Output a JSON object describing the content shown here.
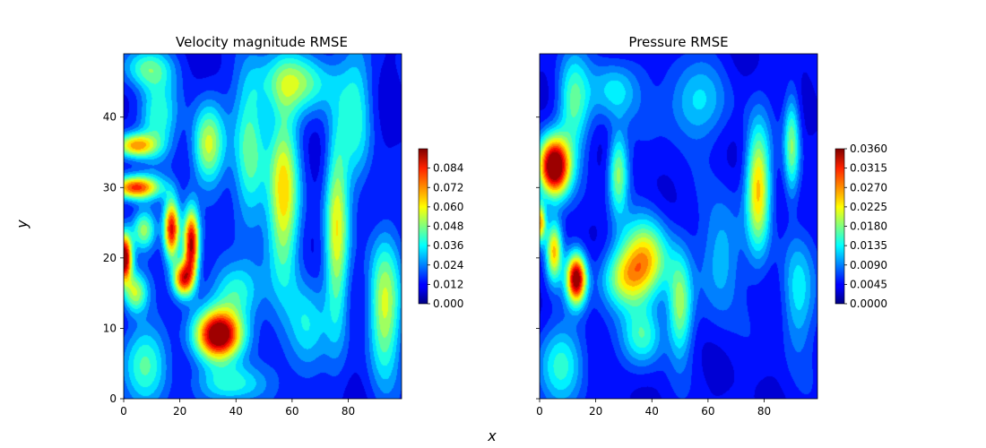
{
  "figure": {
    "xlabel": "x",
    "ylabel": "y"
  },
  "chart_data": [
    {
      "type": "heatmap",
      "title": "Velocity magnitude RMSE",
      "xlabel": "x",
      "ylabel": "y",
      "xlim": [
        0,
        99
      ],
      "ylim": [
        0,
        49
      ],
      "x_ticks": [
        0,
        20,
        40,
        60,
        80
      ],
      "x_tick_labels": [
        "0",
        "20",
        "40",
        "60",
        "80"
      ],
      "y_ticks": [
        0,
        10,
        20,
        30,
        40
      ],
      "y_tick_labels": [
        "0",
        "10",
        "20",
        "30",
        "40"
      ],
      "colormap": "jet",
      "colorbar": {
        "min": 0.0,
        "max": 0.096,
        "ticks": [
          0.0,
          0.012,
          0.024,
          0.036,
          0.048,
          0.06,
          0.072,
          0.084
        ],
        "tick_labels": [
          "0.000",
          "0.012",
          "0.024",
          "0.036",
          "0.048",
          "0.060",
          "0.072",
          "0.084"
        ]
      },
      "hotspots": [
        {
          "x": 34,
          "y": 9,
          "value": 0.09,
          "sx": 6,
          "sy": 2.5
        },
        {
          "x": 0,
          "y": 20,
          "value": 0.09,
          "sx": 2,
          "sy": 2.5
        },
        {
          "x": 24,
          "y": 22,
          "value": 0.082,
          "sx": 2,
          "sy": 3.5
        },
        {
          "x": 17,
          "y": 24,
          "value": 0.076,
          "sx": 2,
          "sy": 3
        },
        {
          "x": 21,
          "y": 17,
          "value": 0.068,
          "sx": 2.5,
          "sy": 1.8
        },
        {
          "x": 4,
          "y": 30,
          "value": 0.07,
          "sx": 6,
          "sy": 1.2
        },
        {
          "x": 4,
          "y": 36,
          "value": 0.055,
          "sx": 5,
          "sy": 1.2
        },
        {
          "x": 30,
          "y": 36,
          "value": 0.045,
          "sx": 4,
          "sy": 4
        },
        {
          "x": 57,
          "y": 29,
          "value": 0.05,
          "sx": 4,
          "sy": 9
        },
        {
          "x": 76,
          "y": 24,
          "value": 0.045,
          "sx": 3,
          "sy": 10
        },
        {
          "x": 93,
          "y": 13,
          "value": 0.045,
          "sx": 4,
          "sy": 7
        },
        {
          "x": 7,
          "y": 24,
          "value": 0.04,
          "sx": 3,
          "sy": 2
        },
        {
          "x": 4,
          "y": 15,
          "value": 0.04,
          "sx": 3,
          "sy": 2
        },
        {
          "x": 45,
          "y": 35,
          "value": 0.035,
          "sx": 4,
          "sy": 8
        },
        {
          "x": 62,
          "y": 45,
          "value": 0.035,
          "sx": 10,
          "sy": 3
        },
        {
          "x": 38,
          "y": 2,
          "value": 0.03,
          "sx": 8,
          "sy": 2
        },
        {
          "x": 8,
          "y": 5,
          "value": 0.03,
          "sx": 6,
          "sy": 4
        },
        {
          "x": 12,
          "y": 40,
          "value": 0.03,
          "sx": 5,
          "sy": 4
        },
        {
          "x": 40,
          "y": 15,
          "value": 0.03,
          "sx": 6,
          "sy": 3
        },
        {
          "x": 83,
          "y": 40,
          "value": 0.025,
          "sx": 4,
          "sy": 7
        },
        {
          "x": 65,
          "y": 10,
          "value": 0.025,
          "sx": 5,
          "sy": 5
        },
        {
          "x": 8,
          "y": 47,
          "value": 0.03,
          "sx": 6,
          "sy": 2
        }
      ]
    },
    {
      "type": "heatmap",
      "title": "Pressure RMSE",
      "xlabel": "x",
      "ylabel": "y",
      "xlim": [
        0,
        99
      ],
      "ylim": [
        0,
        49
      ],
      "x_ticks": [
        0,
        20,
        40,
        60,
        80
      ],
      "x_tick_labels": [
        "0",
        "20",
        "40",
        "60",
        "80"
      ],
      "y_ticks": [
        0,
        10,
        20,
        30,
        40
      ],
      "y_tick_labels": [],
      "colormap": "jet",
      "colorbar": {
        "min": 0.0,
        "max": 0.036,
        "ticks": [
          0.0,
          0.0045,
          0.009,
          0.0135,
          0.018,
          0.0225,
          0.027,
          0.0315,
          0.036
        ],
        "tick_labels": [
          "0.0000",
          "0.0045",
          "0.0090",
          "0.0135",
          "0.0180",
          "0.0225",
          "0.0270",
          "0.0315",
          "0.0360"
        ]
      },
      "hotspots": [
        {
          "x": 5,
          "y": 33,
          "value": 0.036,
          "sx": 4,
          "sy": 3
        },
        {
          "x": 13,
          "y": 17,
          "value": 0.032,
          "sx": 2.5,
          "sy": 2.5
        },
        {
          "x": 5,
          "y": 21,
          "value": 0.02,
          "sx": 2,
          "sy": 3
        },
        {
          "x": 0,
          "y": 25,
          "value": 0.022,
          "sx": 1.5,
          "sy": 2
        },
        {
          "x": 38,
          "y": 20,
          "value": 0.018,
          "sx": 6,
          "sy": 4
        },
        {
          "x": 30,
          "y": 17,
          "value": 0.014,
          "sx": 6,
          "sy": 3
        },
        {
          "x": 28,
          "y": 32,
          "value": 0.015,
          "sx": 2.5,
          "sy": 4
        },
        {
          "x": 78,
          "y": 30,
          "value": 0.02,
          "sx": 3,
          "sy": 6
        },
        {
          "x": 90,
          "y": 36,
          "value": 0.014,
          "sx": 2,
          "sy": 5
        },
        {
          "x": 50,
          "y": 13,
          "value": 0.014,
          "sx": 3,
          "sy": 5
        },
        {
          "x": 37,
          "y": 9,
          "value": 0.011,
          "sx": 5,
          "sy": 3
        },
        {
          "x": 12,
          "y": 42,
          "value": 0.012,
          "sx": 4,
          "sy": 5
        },
        {
          "x": 8,
          "y": 5,
          "value": 0.01,
          "sx": 6,
          "sy": 4
        },
        {
          "x": 55,
          "y": 42,
          "value": 0.008,
          "sx": 8,
          "sy": 4
        },
        {
          "x": 65,
          "y": 20,
          "value": 0.008,
          "sx": 5,
          "sy": 6
        },
        {
          "x": 27,
          "y": 44,
          "value": 0.009,
          "sx": 6,
          "sy": 3
        },
        {
          "x": 92,
          "y": 15,
          "value": 0.009,
          "sx": 4,
          "sy": 6
        }
      ]
    }
  ]
}
